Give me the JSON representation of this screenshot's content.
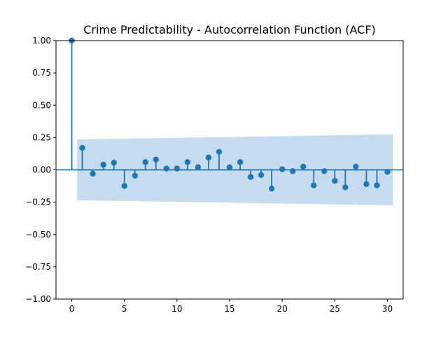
{
  "chart_data": {
    "type": "stem",
    "title": "Crime Predictability - Autocorrelation Function (ACF)",
    "xlabel": "",
    "ylabel": "",
    "xlim": [
      -1.5,
      31.5
    ],
    "ylim": [
      -1.0,
      1.0
    ],
    "xticks": [
      0,
      5,
      10,
      15,
      20,
      25,
      30
    ],
    "xtick_labels": [
      "0",
      "5",
      "10",
      "15",
      "20",
      "25",
      "30"
    ],
    "yticks": [
      1.0,
      0.75,
      0.5,
      0.25,
      0.0,
      -0.25,
      -0.5,
      -0.75,
      -1.0
    ],
    "ytick_labels": [
      "1.00",
      "0.75",
      "0.50",
      "0.25",
      "0.00",
      "−0.25",
      "−0.50",
      "−0.75",
      "−1.00"
    ],
    "grid": false,
    "colors": {
      "stem": "#1f77b4",
      "confidence_band": "#c6dbef"
    },
    "series": [
      {
        "x": [
          0,
          1,
          2,
          3,
          4,
          5,
          6,
          7,
          8,
          9,
          10,
          11,
          12,
          13,
          14,
          15,
          16,
          17,
          18,
          19,
          20,
          21,
          22,
          23,
          24,
          25,
          26,
          27,
          28,
          29,
          30
        ],
        "values": [
          1.0,
          0.17,
          -0.03,
          0.04,
          0.055,
          -0.125,
          -0.045,
          0.06,
          0.08,
          0.01,
          0.01,
          0.06,
          0.02,
          0.095,
          0.14,
          0.02,
          0.06,
          -0.055,
          -0.04,
          -0.145,
          0.005,
          -0.01,
          0.025,
          -0.12,
          -0.01,
          -0.085,
          -0.135,
          0.025,
          -0.11,
          -0.12,
          -0.015
        ]
      }
    ],
    "confidence_band": {
      "x": [
        0.5,
        30.5
      ],
      "upper": [
        0.235,
        0.275
      ],
      "lower": [
        -0.235,
        -0.275
      ]
    }
  }
}
